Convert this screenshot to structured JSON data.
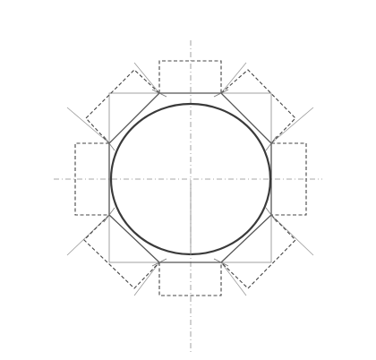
{
  "diagram": {
    "stroke_color": "#555555",
    "guide_color": "#8a8a8a",
    "circle_color": "#3a3a3a",
    "background": "#ffffff"
  }
}
